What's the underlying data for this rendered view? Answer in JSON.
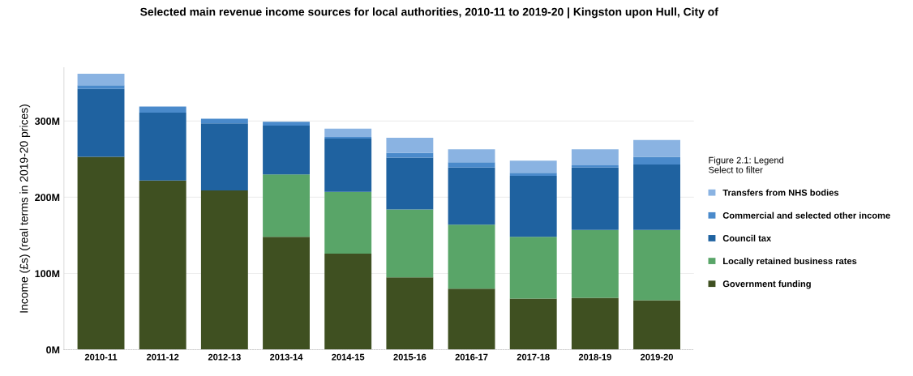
{
  "chart_data": {
    "type": "bar",
    "title": "Selected main revenue income sources for local authorities, 2010-11 to 2019-20 | Kingston upon Hull, City of",
    "ylabel": "Income (£s) (real terms in 2019-20 prices)",
    "categories": [
      "2010-11",
      "2011-12",
      "2012-13",
      "2013-14",
      "2014-15",
      "2015-16",
      "2016-17",
      "2017-18",
      "2018-19",
      "2019-20"
    ],
    "stacked": true,
    "series": [
      {
        "name": "Government funding",
        "color": "#3f5021",
        "values": [
          253,
          222,
          209,
          148,
          126,
          95,
          80,
          67,
          68,
          65
        ]
      },
      {
        "name": "Locally retained business rates",
        "color": "#59a568",
        "values": [
          0,
          0,
          0,
          82,
          81,
          89,
          84,
          81,
          89,
          92
        ]
      },
      {
        "name": "Council tax",
        "color": "#1f62a0",
        "values": [
          89,
          89,
          88,
          64,
          70,
          68,
          75,
          80,
          82,
          86
        ]
      },
      {
        "name": "Commercial and selected other income",
        "color": "#4a8acb",
        "values": [
          5,
          8,
          6,
          5,
          2,
          6,
          7,
          4,
          3,
          10
        ]
      },
      {
        "name": "Transfers from NHS bodies",
        "color": "#8ab3e2",
        "values": [
          15,
          0,
          0,
          0,
          11,
          20,
          17,
          16,
          21,
          22
        ]
      }
    ],
    "ylim": [
      0,
      370
    ],
    "yticks": [
      {
        "value": 0,
        "label": "0M"
      },
      {
        "value": 100,
        "label": "100M"
      },
      {
        "value": 200,
        "label": "200M"
      },
      {
        "value": 300,
        "label": "300M"
      }
    ],
    "grid": "y",
    "legend": "right",
    "legend_title": "Figure 2.1: Legend\nSelect to filter"
  }
}
